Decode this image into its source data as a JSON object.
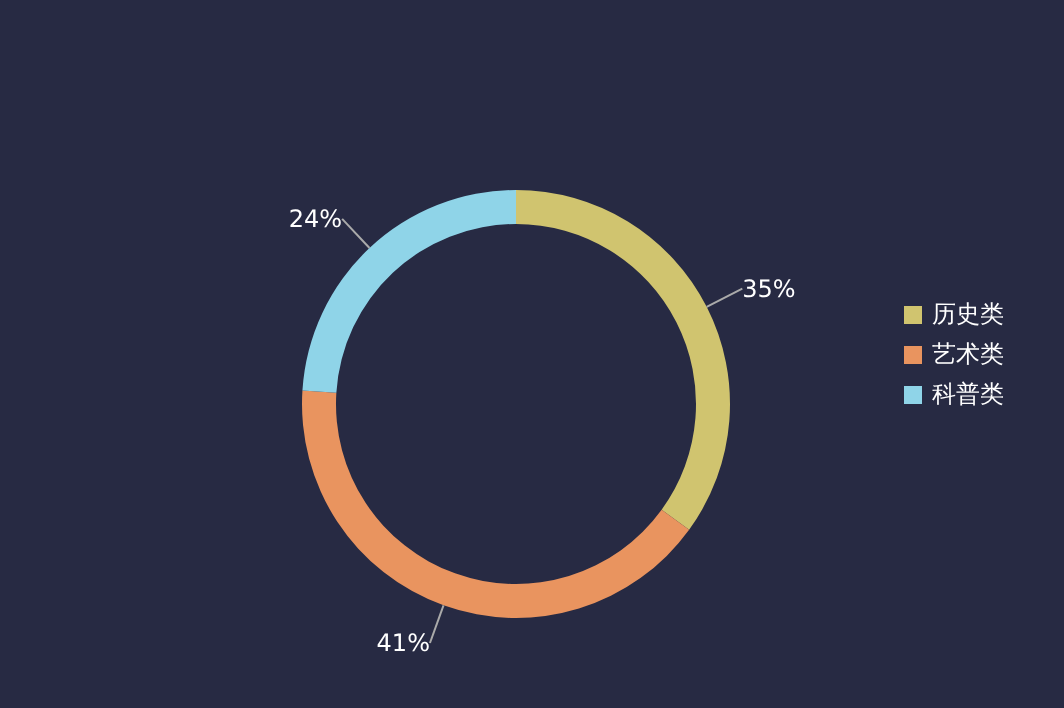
{
  "chart_data": {
    "type": "donut",
    "categories": [
      "历史类",
      "艺术类",
      "科普类"
    ],
    "values": [
      35,
      41,
      24
    ],
    "colors": [
      "#d0c46f",
      "#e9945f",
      "#8fd4e8"
    ],
    "value_labels": [
      "35%",
      "41%",
      "24%"
    ],
    "legend": "right"
  }
}
